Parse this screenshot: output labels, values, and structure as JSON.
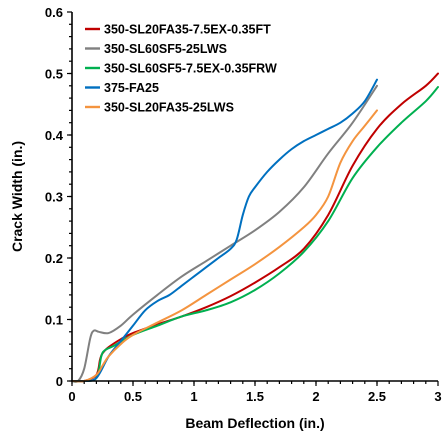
{
  "chart_data": {
    "type": "line",
    "xlabel": "Beam Deflection (in.)",
    "ylabel": "Crack Width (in.)",
    "xlim": [
      0,
      3
    ],
    "ylim": [
      0,
      0.6
    ],
    "x_ticks": [
      0,
      0.5,
      1,
      1.5,
      2,
      2.5,
      3
    ],
    "y_ticks": [
      0,
      0.1,
      0.2,
      0.3,
      0.4,
      0.5,
      0.6
    ],
    "x_tick_labels": [
      "0",
      "0.5",
      "1",
      "1.5",
      "2",
      "2.5",
      "3"
    ],
    "y_tick_labels": [
      "0",
      "0.1",
      "0.2",
      "0.3",
      "0.4",
      "0.5",
      "0.6"
    ],
    "grid": false,
    "legend_position": "top-left",
    "series": [
      {
        "name": "350-SL20FA35-7.5EX-0.35FT",
        "color": "#C00000",
        "x": [
          0.0,
          0.1,
          0.2,
          0.23,
          0.25,
          0.3,
          0.4,
          0.5,
          0.7,
          0.9,
          1.1,
          1.3,
          1.5,
          1.7,
          1.9,
          2.1,
          2.3,
          2.5,
          2.7,
          2.9,
          3.0
        ],
        "y": [
          0.0,
          0.0,
          0.01,
          0.035,
          0.045,
          0.055,
          0.068,
          0.078,
          0.092,
          0.105,
          0.12,
          0.138,
          0.16,
          0.185,
          0.215,
          0.27,
          0.35,
          0.41,
          0.45,
          0.48,
          0.5
        ]
      },
      {
        "name": "350-SL60SF5-25LWS",
        "color": "#808080",
        "x": [
          0.0,
          0.05,
          0.1,
          0.15,
          0.18,
          0.22,
          0.3,
          0.4,
          0.5,
          0.7,
          0.9,
          1.1,
          1.3,
          1.5,
          1.7,
          1.9,
          2.1,
          2.3,
          2.5
        ],
        "y": [
          0.0,
          0.0,
          0.02,
          0.07,
          0.082,
          0.08,
          0.078,
          0.09,
          0.108,
          0.14,
          0.17,
          0.195,
          0.22,
          0.245,
          0.275,
          0.315,
          0.37,
          0.42,
          0.48
        ]
      },
      {
        "name": "350-SL60SF5-7.5EX-0.35FRW",
        "color": "#00B050",
        "x": [
          0.0,
          0.1,
          0.2,
          0.24,
          0.27,
          0.35,
          0.5,
          0.7,
          0.9,
          1.1,
          1.3,
          1.5,
          1.7,
          1.9,
          2.1,
          2.3,
          2.5,
          2.7,
          2.9,
          3.0
        ],
        "y": [
          0.0,
          0.0,
          0.005,
          0.04,
          0.05,
          0.058,
          0.075,
          0.09,
          0.105,
          0.115,
          0.128,
          0.148,
          0.175,
          0.21,
          0.26,
          0.33,
          0.38,
          0.42,
          0.455,
          0.478
        ]
      },
      {
        "name": "375-FA25",
        "color": "#0070C0",
        "x": [
          0.0,
          0.1,
          0.2,
          0.3,
          0.4,
          0.5,
          0.6,
          0.7,
          0.8,
          0.9,
          1.0,
          1.1,
          1.2,
          1.3,
          1.35,
          1.4,
          1.45,
          1.5,
          1.6,
          1.7,
          1.8,
          1.9,
          2.0,
          2.1,
          2.2,
          2.3,
          2.4,
          2.5
        ],
        "y": [
          0.0,
          0.0,
          0.005,
          0.04,
          0.065,
          0.09,
          0.115,
          0.13,
          0.14,
          0.155,
          0.17,
          0.185,
          0.2,
          0.215,
          0.23,
          0.27,
          0.3,
          0.315,
          0.34,
          0.36,
          0.377,
          0.39,
          0.4,
          0.41,
          0.42,
          0.435,
          0.455,
          0.49
        ]
      },
      {
        "name": "350-SL20FA35-25LWS",
        "color": "#F4943F",
        "x": [
          0.0,
          0.1,
          0.2,
          0.25,
          0.3,
          0.4,
          0.5,
          0.7,
          0.9,
          1.1,
          1.3,
          1.5,
          1.7,
          1.9,
          2.0,
          2.1,
          2.2,
          2.3,
          2.4,
          2.5
        ],
        "y": [
          0.0,
          0.0,
          0.01,
          0.025,
          0.04,
          0.06,
          0.075,
          0.095,
          0.115,
          0.14,
          0.165,
          0.19,
          0.218,
          0.25,
          0.27,
          0.3,
          0.355,
          0.39,
          0.415,
          0.44
        ]
      }
    ]
  }
}
